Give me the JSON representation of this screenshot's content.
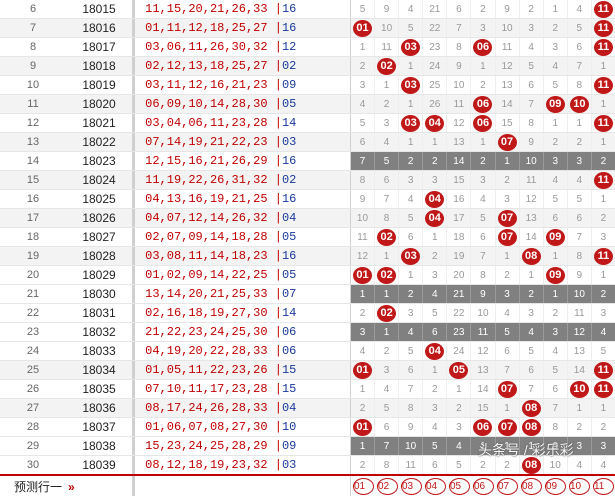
{
  "rows": [
    {
      "idx": "6",
      "period": "18015",
      "red": "11,15,20,21,26,33",
      "blue": "16",
      "cells": [
        "5",
        "9",
        "4",
        "21",
        "6",
        "2",
        "9",
        "2",
        "1",
        "4",
        "11"
      ],
      "balls": [
        10
      ],
      "gray": false
    },
    {
      "idx": "7",
      "period": "18016",
      "red": "01,11,12,18,25,27",
      "blue": "16",
      "cells": [
        "01",
        "10",
        "5",
        "22",
        "7",
        "3",
        "10",
        "3",
        "2",
        "5",
        "11"
      ],
      "balls": [
        0,
        10
      ],
      "gray": false
    },
    {
      "idx": "8",
      "period": "18017",
      "red": "03,06,11,26,30,32",
      "blue": "12",
      "cells": [
        "1",
        "11",
        "03",
        "23",
        "8",
        "06",
        "11",
        "4",
        "3",
        "6",
        "11"
      ],
      "balls": [
        2,
        5,
        10
      ],
      "gray": false
    },
    {
      "idx": "9",
      "period": "18018",
      "red": "02,12,13,18,25,27",
      "blue": "02",
      "cells": [
        "2",
        "02",
        "1",
        "24",
        "9",
        "1",
        "12",
        "5",
        "4",
        "7",
        "1"
      ],
      "balls": [
        1
      ],
      "gray": false
    },
    {
      "idx": "10",
      "period": "18019",
      "red": "03,11,12,16,21,23",
      "blue": "09",
      "cells": [
        "3",
        "1",
        "03",
        "25",
        "10",
        "2",
        "13",
        "6",
        "5",
        "8",
        "11"
      ],
      "balls": [
        2,
        10
      ],
      "gray": false
    },
    {
      "idx": "11",
      "period": "18020",
      "red": "06,09,10,14,28,30",
      "blue": "05",
      "cells": [
        "4",
        "2",
        "1",
        "26",
        "11",
        "06",
        "14",
        "7",
        "09",
        "10",
        "1"
      ],
      "balls": [
        5,
        8,
        9
      ],
      "gray": false
    },
    {
      "idx": "12",
      "period": "18021",
      "red": "03,04,06,11,23,28",
      "blue": "14",
      "cells": [
        "5",
        "3",
        "03",
        "04",
        "12",
        "06",
        "15",
        "8",
        "1",
        "1",
        "11"
      ],
      "balls": [
        2,
        3,
        5,
        10
      ],
      "gray": false
    },
    {
      "idx": "13",
      "period": "18022",
      "red": "07,14,19,21,22,23",
      "blue": "03",
      "cells": [
        "6",
        "4",
        "1",
        "1",
        "13",
        "1",
        "07",
        "9",
        "2",
        "2",
        "1"
      ],
      "balls": [
        6
      ],
      "gray": false
    },
    {
      "idx": "14",
      "period": "18023",
      "red": "12,15,16,21,26,29",
      "blue": "16",
      "cells": [
        "7",
        "5",
        "2",
        "2",
        "14",
        "2",
        "1",
        "10",
        "3",
        "3",
        "2"
      ],
      "balls": [],
      "gray": true
    },
    {
      "idx": "15",
      "period": "18024",
      "red": "11,19,22,26,31,32",
      "blue": "02",
      "cells": [
        "8",
        "6",
        "3",
        "3",
        "15",
        "3",
        "2",
        "11",
        "4",
        "4",
        "11"
      ],
      "balls": [
        10
      ],
      "gray": false
    },
    {
      "idx": "16",
      "period": "18025",
      "red": "04,13,16,19,21,25",
      "blue": "16",
      "cells": [
        "9",
        "7",
        "4",
        "04",
        "16",
        "4",
        "3",
        "12",
        "5",
        "5",
        "1"
      ],
      "balls": [
        3
      ],
      "gray": false
    },
    {
      "idx": "17",
      "period": "18026",
      "red": "04,07,12,14,26,32",
      "blue": "04",
      "cells": [
        "10",
        "8",
        "5",
        "04",
        "17",
        "5",
        "07",
        "13",
        "6",
        "6",
        "2"
      ],
      "balls": [
        3,
        6
      ],
      "gray": false
    },
    {
      "idx": "18",
      "period": "18027",
      "red": "02,07,09,14,18,28",
      "blue": "05",
      "cells": [
        "11",
        "02",
        "6",
        "1",
        "18",
        "6",
        "07",
        "14",
        "09",
        "7",
        "3"
      ],
      "balls": [
        1,
        6,
        8
      ],
      "gray": false
    },
    {
      "idx": "19",
      "period": "18028",
      "red": "03,08,11,14,18,23",
      "blue": "16",
      "cells": [
        "12",
        "1",
        "03",
        "2",
        "19",
        "7",
        "1",
        "08",
        "1",
        "8",
        "11"
      ],
      "balls": [
        2,
        7,
        10
      ],
      "gray": false
    },
    {
      "idx": "20",
      "period": "18029",
      "red": "01,02,09,14,22,25",
      "blue": "05",
      "cells": [
        "01",
        "02",
        "1",
        "3",
        "20",
        "8",
        "2",
        "1",
        "09",
        "9",
        "1"
      ],
      "balls": [
        0,
        1,
        8
      ],
      "gray": false
    },
    {
      "idx": "21",
      "period": "18030",
      "red": "13,14,20,21,25,33",
      "blue": "07",
      "cells": [
        "1",
        "1",
        "2",
        "4",
        "21",
        "9",
        "3",
        "2",
        "1",
        "10",
        "2"
      ],
      "balls": [],
      "gray": true
    },
    {
      "idx": "22",
      "period": "18031",
      "red": "02,16,18,19,27,30",
      "blue": "14",
      "cells": [
        "2",
        "02",
        "3",
        "5",
        "22",
        "10",
        "4",
        "3",
        "2",
        "11",
        "3"
      ],
      "balls": [
        1
      ],
      "gray": false
    },
    {
      "idx": "23",
      "period": "18032",
      "red": "21,22,23,24,25,30",
      "blue": "06",
      "cells": [
        "3",
        "1",
        "4",
        "6",
        "23",
        "11",
        "5",
        "4",
        "3",
        "12",
        "4"
      ],
      "balls": [],
      "gray": true
    },
    {
      "idx": "24",
      "period": "18033",
      "red": "04,19,20,22,28,33",
      "blue": "06",
      "cells": [
        "4",
        "2",
        "5",
        "04",
        "24",
        "12",
        "6",
        "5",
        "4",
        "13",
        "5"
      ],
      "balls": [
        3
      ],
      "gray": false
    },
    {
      "idx": "25",
      "period": "18034",
      "red": "01,05,11,22,23,26",
      "blue": "15",
      "cells": [
        "01",
        "3",
        "6",
        "1",
        "05",
        "13",
        "7",
        "6",
        "5",
        "14",
        "11"
      ],
      "balls": [
        0,
        4,
        10
      ],
      "gray": false
    },
    {
      "idx": "26",
      "period": "18035",
      "red": "07,10,11,17,23,28",
      "blue": "15",
      "cells": [
        "1",
        "4",
        "7",
        "2",
        "1",
        "14",
        "07",
        "7",
        "6",
        "10",
        "11"
      ],
      "balls": [
        6,
        9,
        10
      ],
      "gray": false
    },
    {
      "idx": "27",
      "period": "18036",
      "red": "08,17,24,26,28,33",
      "blue": "04",
      "cells": [
        "2",
        "5",
        "8",
        "3",
        "2",
        "15",
        "1",
        "08",
        "7",
        "1",
        "1"
      ],
      "balls": [
        7
      ],
      "gray": false
    },
    {
      "idx": "28",
      "period": "18037",
      "red": "01,06,07,08,27,30",
      "blue": "10",
      "cells": [
        "01",
        "6",
        "9",
        "4",
        "3",
        "06",
        "07",
        "08",
        "8",
        "2",
        "2"
      ],
      "balls": [
        0,
        5,
        6,
        7
      ],
      "gray": false
    },
    {
      "idx": "29",
      "period": "18038",
      "red": "15,23,24,25,28,29",
      "blue": "09",
      "cells": [
        "1",
        "7",
        "10",
        "5",
        "4",
        "1",
        "1",
        "1",
        "9",
        "3",
        "3"
      ],
      "balls": [],
      "gray": true
    },
    {
      "idx": "30",
      "period": "18039",
      "red": "08,12,18,19,23,32",
      "blue": "03",
      "cells": [
        "2",
        "8",
        "11",
        "6",
        "5",
        "2",
        "2",
        "08",
        "10",
        "4",
        "4"
      ],
      "balls": [
        7
      ],
      "gray": false
    }
  ],
  "predict": {
    "label": "预测行一",
    "chevron": "»",
    "balls": [
      "01",
      "02",
      "03",
      "04",
      "05",
      "06",
      "07",
      "08",
      "09",
      "10",
      "11"
    ]
  },
  "watermark": "头条号 / 彩乐彩"
}
